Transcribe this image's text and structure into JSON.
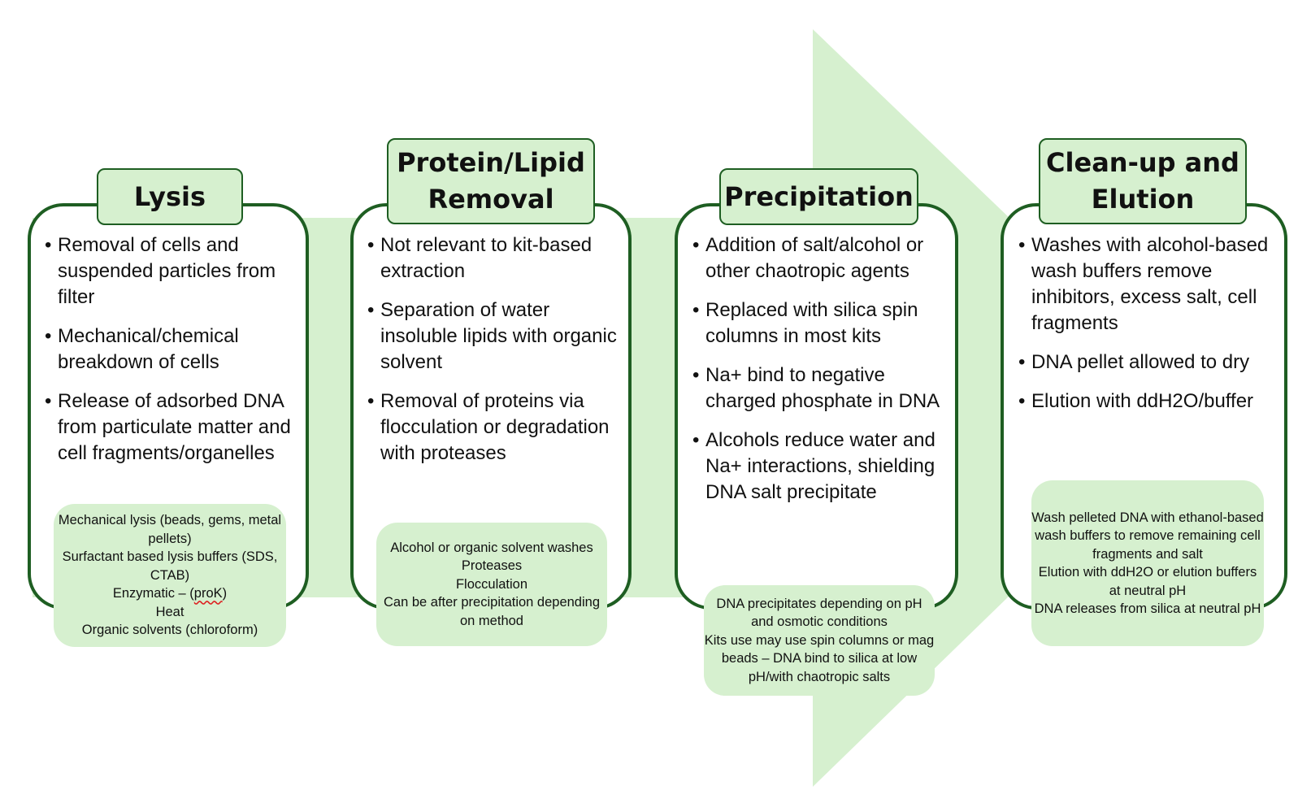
{
  "colors": {
    "arrow_fill": "#d6f0cf",
    "border": "#1e5e22",
    "note_fill": "#d6f0cf"
  },
  "stages": [
    {
      "title": "Lysis",
      "bullets": [
        "Removal of cells and suspended particles from filter",
        "Mechanical/chemical breakdown of cells",
        "Release of adsorbed DNA from particulate matter and cell fragments/organelles"
      ],
      "note": {
        "lines": [
          "Mechanical lysis (beads, gems, metal pellets)",
          "Surfactant based lysis buffers (SDS, CTAB)",
          "Enzymatic – (proK)",
          "Heat",
          "Organic solvents (chloroform)"
        ]
      }
    },
    {
      "title": "Protein/Lipid Removal",
      "bullets": [
        "Not relevant to kit-based extraction",
        "Separation of water insoluble lipids with organic solvent",
        "Removal of proteins via flocculation or degradation with proteases"
      ],
      "note": {
        "lines": [
          "Alcohol or organic solvent washes",
          "Proteases",
          "Flocculation",
          "Can be after precipitation depending on method"
        ]
      }
    },
    {
      "title": "Precipitation",
      "bullets": [
        "Addition of salt/alcohol or other chaotropic agents",
        "Replaced with silica spin columns in most kits",
        "Na+ bind to negative charged phosphate in DNA",
        "Alcohols reduce water and Na+ interactions, shielding DNA salt precipitate"
      ],
      "note": {
        "lines": [
          "DNA precipitates depending on pH and osmotic conditions",
          "Kits use may use spin columns or mag beads – DNA bind to silica at low pH/with chaotropic salts"
        ]
      }
    },
    {
      "title": "Clean-up and Elution",
      "bullets": [
        "Washes with alcohol-based wash buffers remove inhibitors, excess salt, cell fragments",
        "DNA pellet allowed to dry",
        "Elution with ddH2O/buffer"
      ],
      "note": {
        "lines": [
          "Wash pelleted DNA with ethanol-based wash buffers to remove remaining cell fragments and salt",
          "Elution with ddH2O or elution buffers at neutral pH",
          "DNA releases from silica at neutral pH"
        ]
      }
    }
  ]
}
